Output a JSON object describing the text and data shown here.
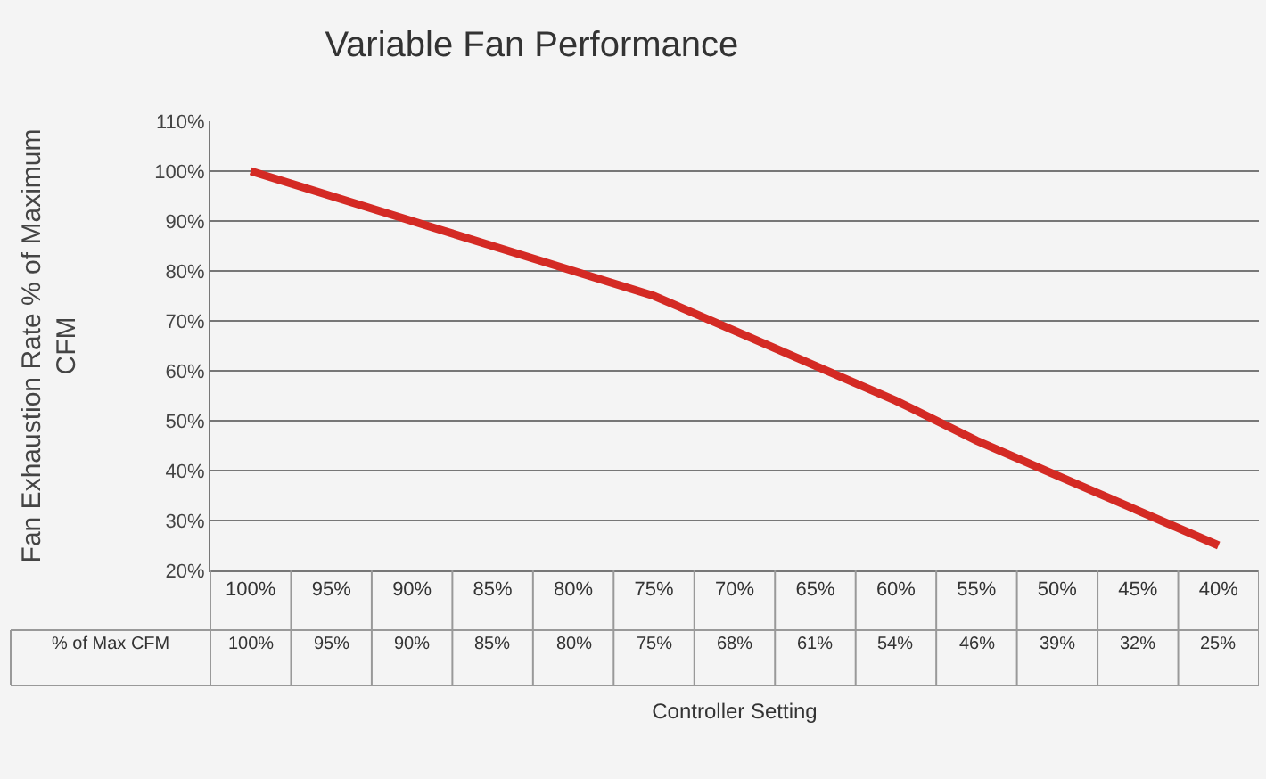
{
  "chart_data": {
    "type": "line",
    "title": "Variable Fan Performance",
    "xlabel": "Controller Setting",
    "ylabel": "Fan Exhaustion Rate % of Maximum CFM",
    "categories": [
      "100%",
      "95%",
      "90%",
      "85%",
      "80%",
      "75%",
      "70%",
      "65%",
      "60%",
      "55%",
      "50%",
      "45%",
      "40%"
    ],
    "series": [
      {
        "name": "% of Max CFM",
        "color": "#d42a24",
        "values": [
          100,
          95,
          90,
          85,
          80,
          75,
          68,
          61,
          54,
          46,
          39,
          32,
          25
        ],
        "value_labels": [
          "100%",
          "95%",
          "90%",
          "85%",
          "80%",
          "75%",
          "68%",
          "61%",
          "54%",
          "46%",
          "39%",
          "32%",
          "25%"
        ]
      }
    ],
    "ylim": [
      20,
      110
    ],
    "yticks": [
      {
        "value": 20,
        "label": "20%"
      },
      {
        "value": 30,
        "label": "30%"
      },
      {
        "value": 40,
        "label": "40%"
      },
      {
        "value": 50,
        "label": "50%"
      },
      {
        "value": 60,
        "label": "60%"
      },
      {
        "value": 70,
        "label": "70%"
      },
      {
        "value": 80,
        "label": "80%"
      },
      {
        "value": 90,
        "label": "90%"
      },
      {
        "value": 100,
        "label": "100%"
      },
      {
        "value": 110,
        "label": "110%"
      }
    ],
    "grid": "y",
    "legend": false,
    "marker": "none",
    "line_style": "solid"
  }
}
